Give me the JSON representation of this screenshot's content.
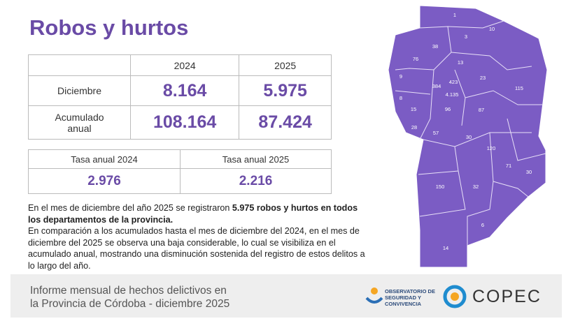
{
  "header": {
    "title": "Robos y hurtos"
  },
  "table": {
    "header": [
      "2024",
      "2025"
    ],
    "rows": [
      [
        "Diciembre",
        "8.164",
        "5.975"
      ],
      [
        "Acumulado anual",
        "108.164",
        "87.424"
      ]
    ]
  },
  "rates": {
    "header": [
      "Tasa anual 2024",
      "Tasa anual 2025"
    ],
    "values": [
      "2.976",
      "2.216"
    ]
  },
  "text": {
    "p1_start": "En el mes de diciembre del año 2025 se registraron ",
    "p1_bold": "5.975 robos y hurtos en todos los departamentos de la provincia.",
    "p2": "En comparación a los acumulados hasta el mes de diciembre del 2024, en el mes de diciembre del 2025 se observa una baja considerable, lo cual se visibiliza en el acumulado anual, mostrando una disminución sostenida del registro de estos delitos a lo largo del año."
  },
  "map": {
    "labels": [
      "1",
      "10",
      "3",
      "38",
      "76",
      "13",
      "9",
      "23",
      "115",
      "384",
      "423",
      "4.135",
      "8",
      "15",
      "96",
      "87",
      "28",
      "57",
      "30",
      "120",
      "71",
      "30",
      "150",
      "32",
      "6",
      "14"
    ]
  },
  "footer": {
    "line1": "Informe mensual de hechos delictivos en",
    "line2": "la Provincia de Córdoba - diciembre 2025",
    "logo1": "OBSERVATORIO DE SEGURIDAD Y CONVIVENCIA",
    "logo2": "COPEC"
  }
}
